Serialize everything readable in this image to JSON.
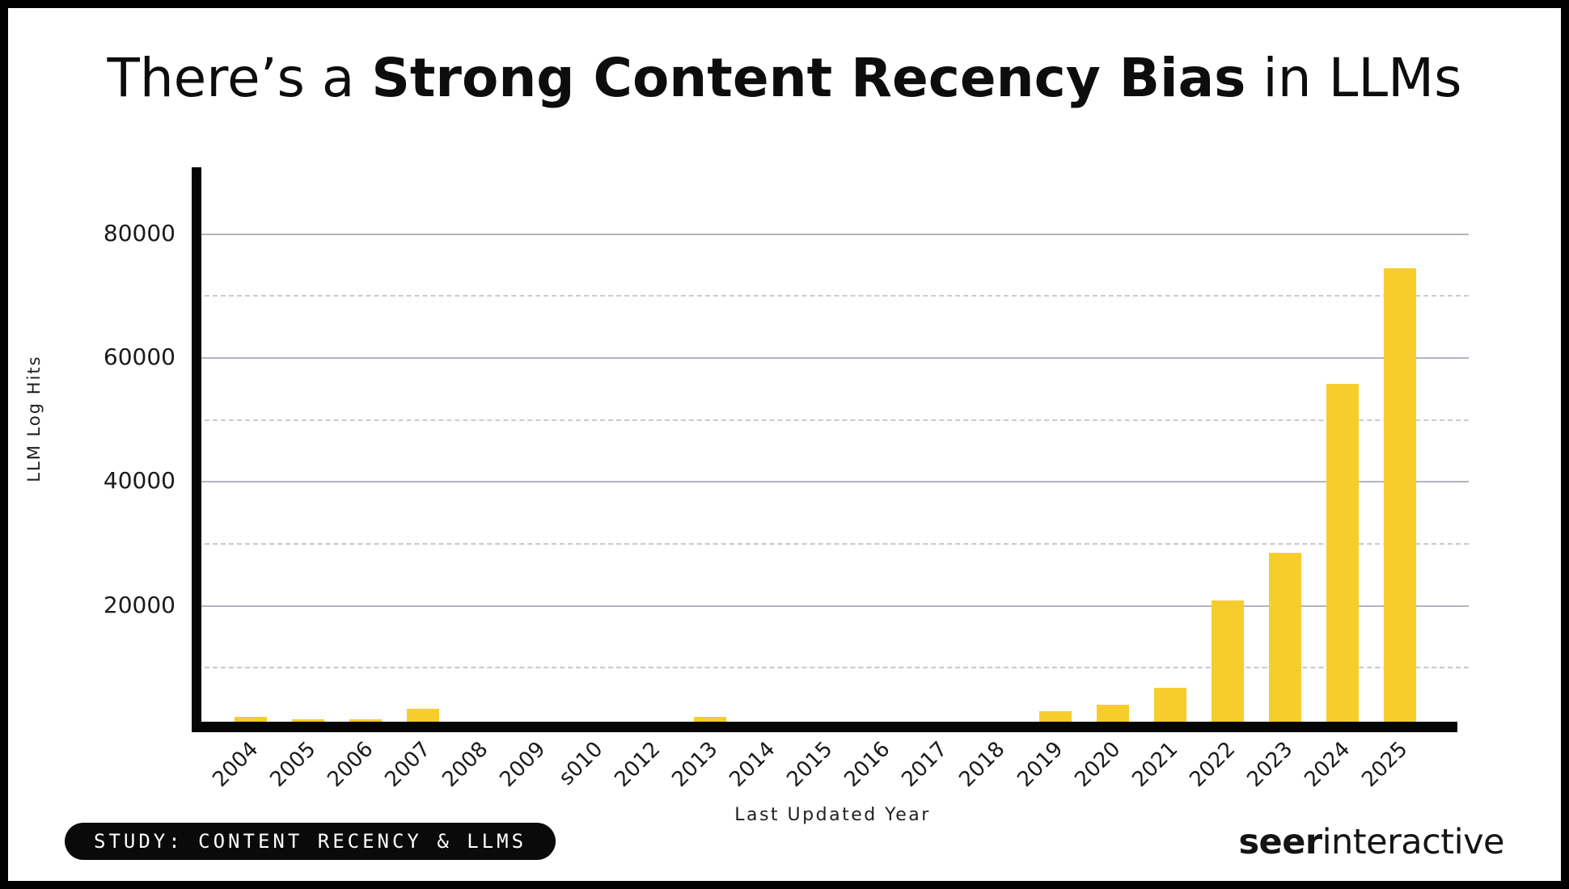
{
  "title": {
    "prefix": "There’s a ",
    "emphasis": "Strong Content Recency Bias",
    "suffix": " in LLMs"
  },
  "chart_data": {
    "type": "bar",
    "title": "There’s a Strong Content Recency Bias in LLMs",
    "xlabel": "Last Updated Year",
    "ylabel": "LLM Log Hits",
    "categories": [
      "2004",
      "2005",
      "2006",
      "2007",
      "2008",
      "2009",
      "s010",
      "2012",
      "2013",
      "2014",
      "2015",
      "2016",
      "2017",
      "2018",
      "2019",
      "2020",
      "2021",
      "2022",
      "2023",
      "2024",
      "2025"
    ],
    "values": [
      2000,
      1600,
      1600,
      3300,
      0,
      0,
      0,
      0,
      2000,
      0,
      0,
      0,
      0,
      0,
      2900,
      3900,
      6600,
      20800,
      28400,
      55700,
      74400
    ],
    "ylim": [
      0,
      90000
    ],
    "yticks": [
      20000,
      40000,
      60000,
      80000
    ],
    "ytick_labels": [
      "20000",
      "40000",
      "60000",
      "80000"
    ],
    "minor_gridlines": [
      10000,
      30000,
      50000,
      70000
    ],
    "grid": "horizontal only: solid major, dashed minor",
    "legend_position": "none",
    "bar_color": "#f7cc2d"
  },
  "footer": {
    "badge_label": "STUDY: CONTENT RECENCY & LLMS",
    "logo_bold": "seer",
    "logo_regular": "interactive"
  },
  "colors": {
    "background": "#ffffff",
    "frame": "#000000",
    "bar": "#f7cc2d",
    "major_grid": "#b4b4be",
    "minor_grid": "#c9c9d3",
    "text": "#111111"
  }
}
